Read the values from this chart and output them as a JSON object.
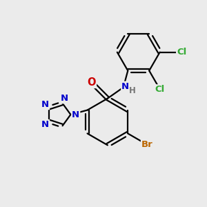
{
  "bg_color": "#ebebeb",
  "bond_color": "#000000",
  "bond_width": 1.6,
  "atom_colors": {
    "N": "#0000cc",
    "O": "#cc0000",
    "Br": "#bb6600",
    "Cl": "#33aa33",
    "H": "#777777",
    "C": "#000000"
  },
  "font_size": 9.5,
  "font_size_small": 8.5
}
